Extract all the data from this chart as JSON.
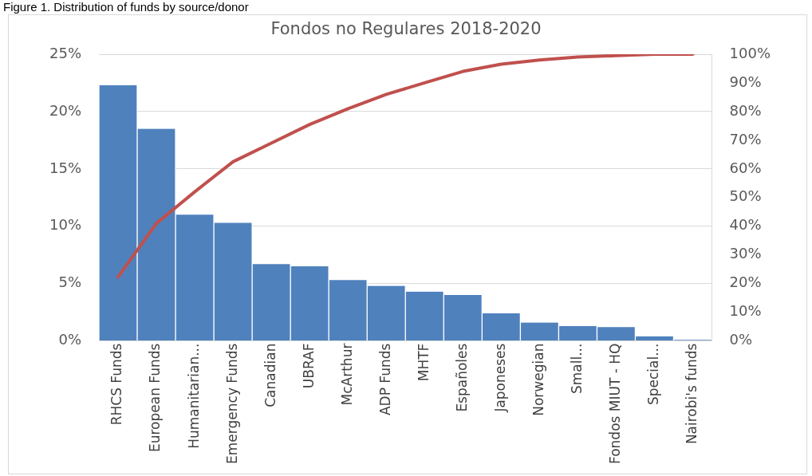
{
  "chart_data": {
    "type": "bar",
    "title": "Fondos no Regulares 2018-2020",
    "annotations": [
      "Figure 1. Distribution of funds by source/donor"
    ],
    "categories": [
      "RHCS Funds",
      "European Funds",
      "Humanitarian...",
      "Emergency Funds",
      "Canadian",
      "UBRAF",
      "McArthur",
      "ADP Funds",
      "MHTF",
      "Españoles",
      "Japoneses",
      "Norwegian",
      "Small...",
      "Fondos MIUT - HQ",
      "Special...",
      "Nairobi's funds"
    ],
    "series": [
      {
        "color": "#4f81bd",
        "values": [
          22.3,
          18.5,
          11.0,
          10.3,
          6.7,
          6.5,
          5.3,
          4.8,
          4.3,
          4.0,
          2.4,
          1.6,
          1.3,
          1.2,
          0.4,
          0.1
        ]
      },
      {
        "type": "line",
        "axis": "y2",
        "color": "#c0504d",
        "values": [
          22.3,
          41,
          52,
          62.5,
          69,
          75.5,
          81,
          86,
          90,
          94,
          96.5,
          98,
          99,
          99.5,
          100,
          100
        ]
      }
    ],
    "ylim": [
      0,
      25
    ],
    "yticks": [
      {
        "value": 0,
        "label": "0%"
      },
      {
        "value": 5,
        "label": "5%"
      },
      {
        "value": 10,
        "label": "10%"
      },
      {
        "value": 15,
        "label": "15%"
      },
      {
        "value": 20,
        "label": "20%"
      },
      {
        "value": 25,
        "label": "25%"
      }
    ],
    "y2lim": [
      0,
      100
    ],
    "y2ticks": [
      {
        "value": 0,
        "label": "0%"
      },
      {
        "value": 10,
        "label": "10%"
      },
      {
        "value": 20,
        "label": "20%"
      },
      {
        "value": 30,
        "label": "30%"
      },
      {
        "value": 40,
        "label": "40%"
      },
      {
        "value": 50,
        "label": "50%"
      },
      {
        "value": 60,
        "label": "60%"
      },
      {
        "value": 70,
        "label": "70%"
      },
      {
        "value": 80,
        "label": "80%"
      },
      {
        "value": 90,
        "label": "90%"
      },
      {
        "value": 100,
        "label": "100%"
      }
    ],
    "grid": "y",
    "marker": "none",
    "legend": false
  }
}
